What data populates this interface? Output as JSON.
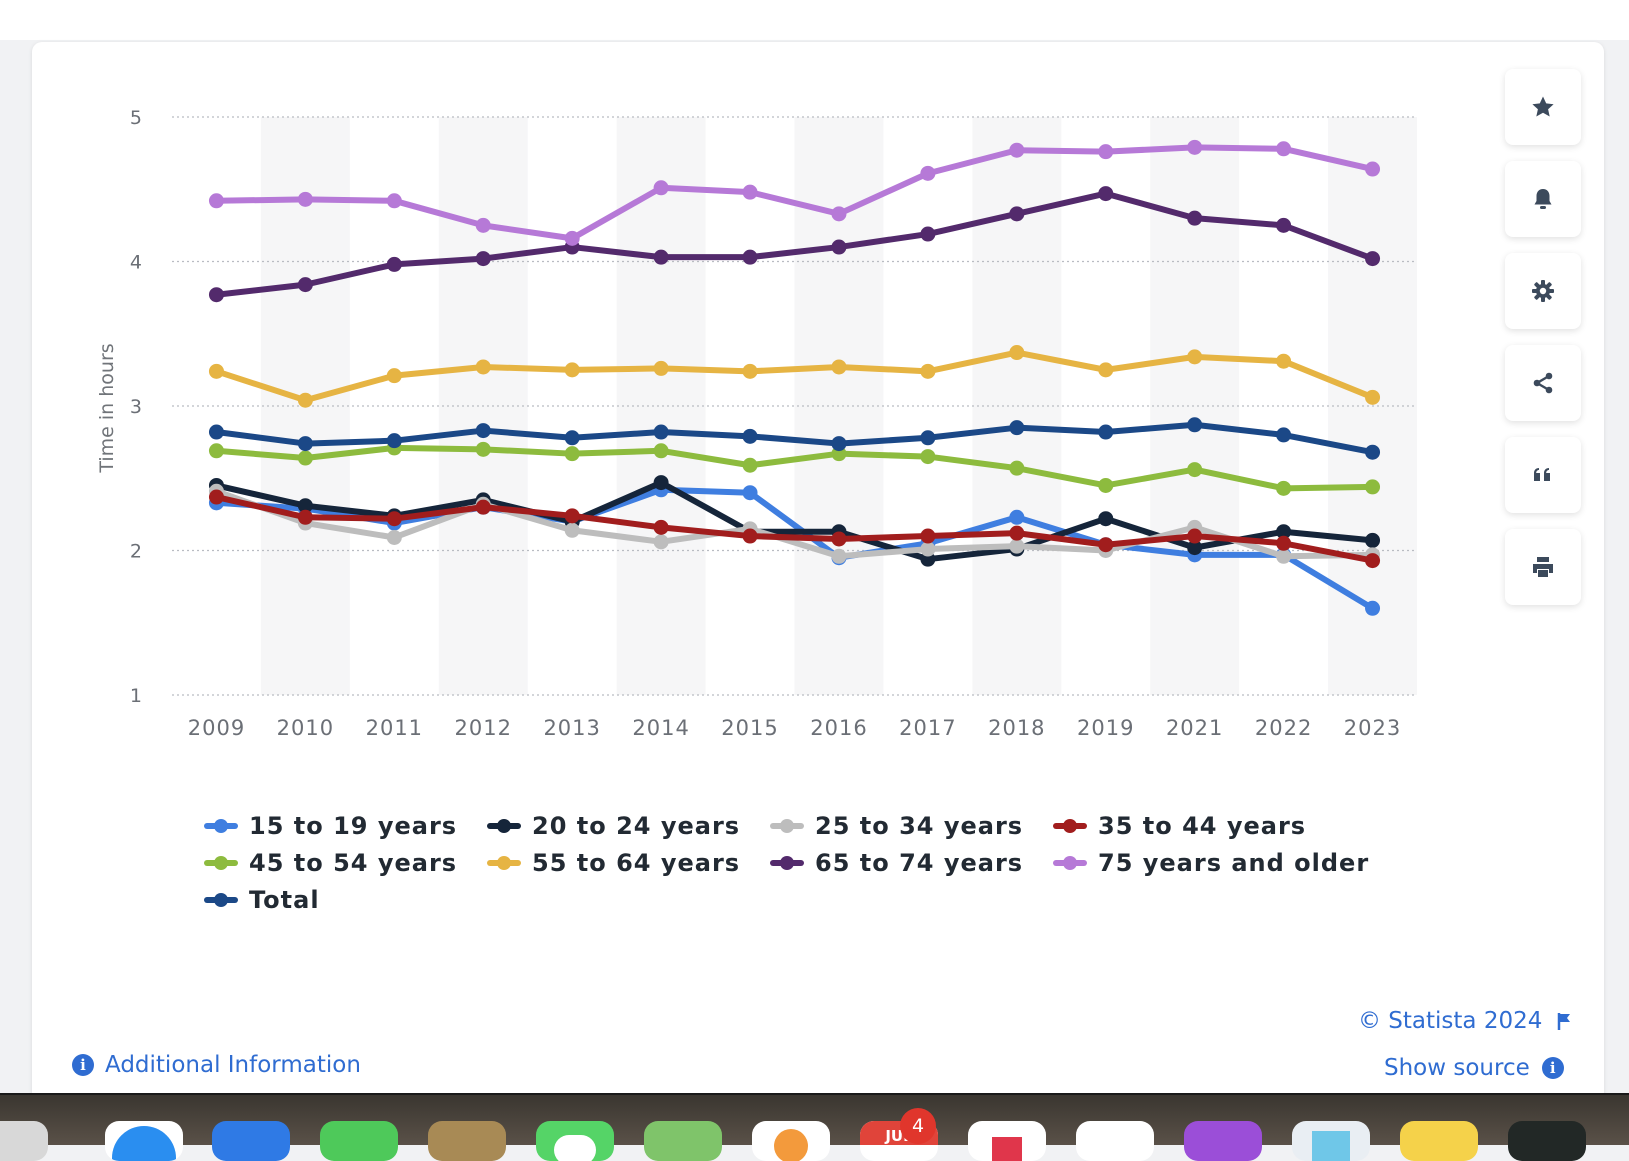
{
  "chart_data": {
    "type": "line",
    "ylabel": "Time in hours",
    "xlabel": "",
    "ylim": [
      1,
      5
    ],
    "yticks": [
      1,
      2,
      3,
      4,
      5
    ],
    "grid": true,
    "legend_position": "bottom",
    "categories": [
      "2009",
      "2010",
      "2011",
      "2012",
      "2013",
      "2014",
      "2015",
      "2016",
      "2017",
      "2018",
      "2019",
      "2021",
      "2022",
      "2023"
    ],
    "series": [
      {
        "name": "15 to 19 years",
        "color": "#3f7ee0",
        "values": [
          2.33,
          2.29,
          2.19,
          2.3,
          2.2,
          2.42,
          2.4,
          1.95,
          2.05,
          2.23,
          2.04,
          1.97,
          1.97,
          1.6
        ]
      },
      {
        "name": "20 to 24 years",
        "color": "#15253a",
        "values": [
          2.45,
          2.31,
          2.24,
          2.35,
          2.2,
          2.47,
          2.13,
          2.13,
          1.94,
          2.01,
          2.22,
          2.02,
          2.13,
          2.07
        ]
      },
      {
        "name": "25 to 34 years",
        "color": "#bdbdbd",
        "values": [
          2.41,
          2.19,
          2.09,
          2.32,
          2.14,
          2.06,
          2.15,
          1.96,
          2.01,
          2.03,
          2.0,
          2.16,
          1.96,
          1.97
        ]
      },
      {
        "name": "35 to 44 years",
        "color": "#a11d1d",
        "values": [
          2.37,
          2.23,
          2.22,
          2.3,
          2.24,
          2.16,
          2.1,
          2.08,
          2.1,
          2.12,
          2.04,
          2.1,
          2.05,
          1.93
        ]
      },
      {
        "name": "45 to 54 years",
        "color": "#8dbb3e",
        "values": [
          2.69,
          2.64,
          2.71,
          2.7,
          2.67,
          2.69,
          2.59,
          2.67,
          2.65,
          2.57,
          2.45,
          2.56,
          2.43,
          2.44
        ]
      },
      {
        "name": "55 to 64 years",
        "color": "#e6b443",
        "values": [
          3.24,
          3.04,
          3.21,
          3.27,
          3.25,
          3.26,
          3.24,
          3.27,
          3.24,
          3.37,
          3.25,
          3.34,
          3.31,
          3.06
        ]
      },
      {
        "name": "65 to 74 years",
        "color": "#532a6c",
        "values": [
          3.77,
          3.84,
          3.98,
          4.02,
          4.1,
          4.03,
          4.03,
          4.1,
          4.19,
          4.33,
          4.47,
          4.3,
          4.25,
          4.02
        ]
      },
      {
        "name": "75 years and older",
        "color": "#b679d7",
        "values": [
          4.42,
          4.43,
          4.42,
          4.25,
          4.16,
          4.51,
          4.48,
          4.33,
          4.61,
          4.77,
          4.76,
          4.79,
          4.78,
          4.64
        ]
      },
      {
        "name": "Total",
        "color": "#1b4887",
        "values": [
          2.82,
          2.74,
          2.76,
          2.83,
          2.78,
          2.82,
          2.79,
          2.74,
          2.78,
          2.85,
          2.82,
          2.87,
          2.8,
          2.68
        ]
      }
    ]
  },
  "footer": {
    "copyright": "© Statista 2024",
    "show_source": "Show source",
    "additional_info": "Additional Information"
  },
  "sidebar_tools": [
    "star-icon",
    "bell-icon",
    "gear-icon",
    "share-icon",
    "quote-icon",
    "print-icon"
  ],
  "dock": {
    "calendar_month": "JUL",
    "calendar_badge": "4"
  }
}
